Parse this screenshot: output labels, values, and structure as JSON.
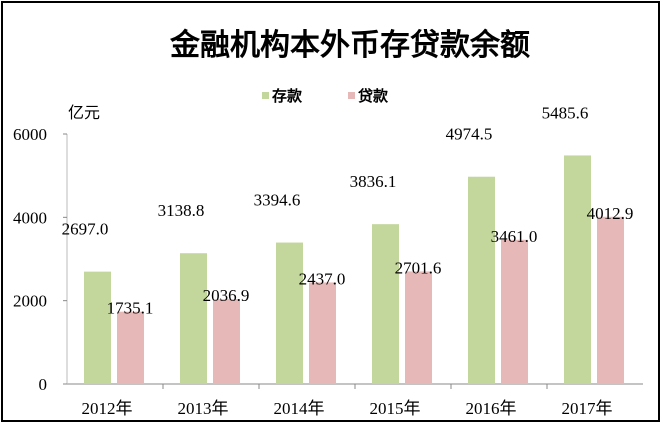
{
  "chart_data": {
    "type": "bar",
    "title": "金融机构本外币存贷款余额",
    "ylabel": "亿元",
    "xlabel": "",
    "categories": [
      "2012年",
      "2013年",
      "2014年",
      "2015年",
      "2016年",
      "2017年"
    ],
    "series": [
      {
        "name": "存款",
        "color": "#c3d69b",
        "values": [
          2697.0,
          3138.8,
          3394.6,
          3836.1,
          4974.5,
          5485.6
        ],
        "labels": [
          "2697.0",
          "3138.8",
          "3394.6",
          "3836.1",
          "4974.5",
          "5485.6"
        ]
      },
      {
        "name": "贷款",
        "color": "#e6b9b8",
        "values": [
          1735.1,
          2036.9,
          2437.0,
          2701.6,
          3461.0,
          4012.9
        ],
        "labels": [
          "1735.1",
          "2036.9",
          "2437.0",
          "2701.6",
          "3461.0",
          "4012.9"
        ]
      }
    ],
    "ylim": [
      0,
      6000
    ],
    "yticks": [
      "0",
      "2000",
      "4000",
      "6000"
    ],
    "grid": false,
    "legend": "top-center"
  }
}
